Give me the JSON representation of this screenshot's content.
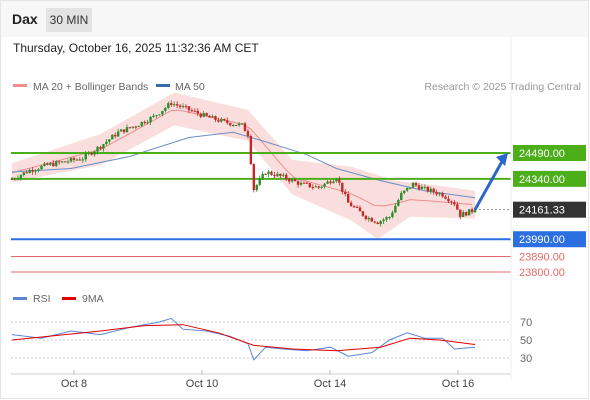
{
  "header": {
    "symbol": "Dax",
    "timeframe": "30 MIN",
    "datetime": "Thursday, October 16, 2025 11:32:36 AM CET"
  },
  "legend": {
    "items": [
      {
        "label": "MA 20 + Bollinger Bands",
        "color": "#f19090"
      },
      {
        "label": "MA 50",
        "color": "#3b6aa8"
      }
    ],
    "credit": "Research © 2025 Trading Central"
  },
  "price_levels": [
    {
      "value": "24490.00",
      "price": 24490,
      "kind": "resistance"
    },
    {
      "value": "24340.00",
      "price": 24340,
      "kind": "resistance"
    },
    {
      "value": "24161.33",
      "price": 24161.33,
      "kind": "current"
    },
    {
      "value": "23990.00",
      "price": 23990,
      "kind": "pivot"
    },
    {
      "value": "23890.00",
      "price": 23890,
      "kind": "support"
    },
    {
      "value": "23800.00",
      "price": 23800,
      "kind": "support"
    }
  ],
  "rsi_legend": [
    {
      "label": "RSI",
      "color": "#5b86d6"
    },
    {
      "label": "9MA",
      "color": "#e00000"
    }
  ],
  "rsi_ticks": [
    "70",
    "50",
    "30"
  ],
  "x_ticks": [
    "Oct 8",
    "Oct 10",
    "Oct 14",
    "Oct 16"
  ],
  "colors": {
    "resistance": "#4caf1a",
    "pivot": "#2c6fe0",
    "support": "#e36a6a",
    "current": "#333333",
    "up": "#2a8f2a",
    "down": "#c62828"
  },
  "chart_data": [
    {
      "type": "candlestick",
      "ylim": [
        23750,
        24900
      ],
      "key_points": [
        {
          "x": 0,
          "y": 24340
        },
        {
          "x": 6,
          "y": 24390
        },
        {
          "x": 12,
          "y": 24420
        },
        {
          "x": 18,
          "y": 24440
        },
        {
          "x": 24,
          "y": 24460
        },
        {
          "x": 30,
          "y": 24530
        },
        {
          "x": 36,
          "y": 24610
        },
        {
          "x": 42,
          "y": 24650
        },
        {
          "x": 48,
          "y": 24700
        },
        {
          "x": 54,
          "y": 24780
        },
        {
          "x": 60,
          "y": 24740
        },
        {
          "x": 66,
          "y": 24700
        },
        {
          "x": 72,
          "y": 24670
        },
        {
          "x": 78,
          "y": 24650
        },
        {
          "x": 80,
          "y": 24600
        },
        {
          "x": 82,
          "y": 24280
        },
        {
          "x": 86,
          "y": 24380
        },
        {
          "x": 92,
          "y": 24350
        },
        {
          "x": 98,
          "y": 24310
        },
        {
          "x": 104,
          "y": 24290
        },
        {
          "x": 110,
          "y": 24350
        },
        {
          "x": 114,
          "y": 24200
        },
        {
          "x": 120,
          "y": 24120
        },
        {
          "x": 124,
          "y": 24090
        },
        {
          "x": 128,
          "y": 24120
        },
        {
          "x": 132,
          "y": 24250
        },
        {
          "x": 136,
          "y": 24310
        },
        {
          "x": 140,
          "y": 24280
        },
        {
          "x": 146,
          "y": 24250
        },
        {
          "x": 150,
          "y": 24200
        },
        {
          "x": 152,
          "y": 24130
        },
        {
          "x": 157,
          "y": 24161.33
        }
      ],
      "ma50_points": [
        {
          "x": 0,
          "y": 24380
        },
        {
          "x": 20,
          "y": 24400
        },
        {
          "x": 40,
          "y": 24470
        },
        {
          "x": 60,
          "y": 24580
        },
        {
          "x": 75,
          "y": 24610
        },
        {
          "x": 85,
          "y": 24560
        },
        {
          "x": 100,
          "y": 24480
        },
        {
          "x": 110,
          "y": 24400
        },
        {
          "x": 125,
          "y": 24330
        },
        {
          "x": 140,
          "y": 24270
        },
        {
          "x": 157,
          "y": 24230
        }
      ],
      "bands_upper_points": [
        {
          "x": 0,
          "y": 24430
        },
        {
          "x": 30,
          "y": 24600
        },
        {
          "x": 55,
          "y": 24840
        },
        {
          "x": 80,
          "y": 24740
        },
        {
          "x": 95,
          "y": 24450
        },
        {
          "x": 115,
          "y": 24410
        },
        {
          "x": 130,
          "y": 24330
        },
        {
          "x": 145,
          "y": 24300
        },
        {
          "x": 157,
          "y": 24270
        }
      ],
      "bands_lower_points": [
        {
          "x": 0,
          "y": 24320
        },
        {
          "x": 30,
          "y": 24420
        },
        {
          "x": 55,
          "y": 24650
        },
        {
          "x": 80,
          "y": 24560
        },
        {
          "x": 95,
          "y": 24250
        },
        {
          "x": 115,
          "y": 24100
        },
        {
          "x": 124,
          "y": 23990
        },
        {
          "x": 135,
          "y": 24120
        },
        {
          "x": 157,
          "y": 24110
        }
      ],
      "forecast_arrow": {
        "from": 24161.33,
        "to": 24490
      }
    },
    {
      "type": "line",
      "title": "RSI",
      "ylim": [
        20,
        80
      ],
      "gridlines": [
        70,
        50,
        30
      ],
      "rsi_points": [
        {
          "x": 0,
          "y": 56
        },
        {
          "x": 10,
          "y": 52
        },
        {
          "x": 20,
          "y": 60
        },
        {
          "x": 30,
          "y": 56
        },
        {
          "x": 40,
          "y": 64
        },
        {
          "x": 50,
          "y": 70
        },
        {
          "x": 54,
          "y": 74
        },
        {
          "x": 58,
          "y": 62
        },
        {
          "x": 66,
          "y": 60
        },
        {
          "x": 74,
          "y": 54
        },
        {
          "x": 80,
          "y": 46
        },
        {
          "x": 82,
          "y": 28
        },
        {
          "x": 86,
          "y": 42
        },
        {
          "x": 92,
          "y": 40
        },
        {
          "x": 100,
          "y": 38
        },
        {
          "x": 108,
          "y": 42
        },
        {
          "x": 114,
          "y": 32
        },
        {
          "x": 122,
          "y": 36
        },
        {
          "x": 128,
          "y": 50
        },
        {
          "x": 134,
          "y": 58
        },
        {
          "x": 140,
          "y": 52
        },
        {
          "x": 146,
          "y": 52
        },
        {
          "x": 150,
          "y": 40
        },
        {
          "x": 157,
          "y": 42
        }
      ],
      "ma9_points": [
        {
          "x": 0,
          "y": 50
        },
        {
          "x": 15,
          "y": 55
        },
        {
          "x": 30,
          "y": 60
        },
        {
          "x": 45,
          "y": 66
        },
        {
          "x": 58,
          "y": 67
        },
        {
          "x": 70,
          "y": 58
        },
        {
          "x": 82,
          "y": 44
        },
        {
          "x": 95,
          "y": 40
        },
        {
          "x": 110,
          "y": 38
        },
        {
          "x": 125,
          "y": 42
        },
        {
          "x": 135,
          "y": 52
        },
        {
          "x": 145,
          "y": 50
        },
        {
          "x": 157,
          "y": 45
        }
      ]
    }
  ]
}
